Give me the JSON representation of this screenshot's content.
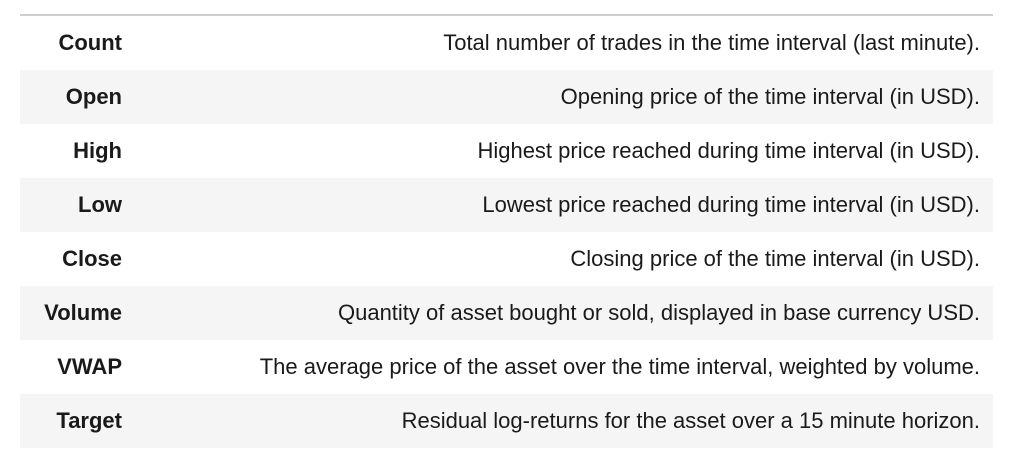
{
  "table": {
    "rows": [
      {
        "field": "Count",
        "description": "Total number of trades in the time interval (last minute)."
      },
      {
        "field": "Open",
        "description": "Opening price of the time interval (in USD)."
      },
      {
        "field": "High",
        "description": "Highest price reached during time interval (in USD)."
      },
      {
        "field": "Low",
        "description": "Lowest price reached during time interval (in USD)."
      },
      {
        "field": "Close",
        "description": "Closing price of the time interval (in USD)."
      },
      {
        "field": "Volume",
        "description": "Quantity of asset bought or sold, displayed in base currency USD."
      },
      {
        "field": "VWAP",
        "description": "The average price of the asset over the time interval, weighted by volume."
      },
      {
        "field": "Target",
        "description": "Residual log-returns for the asset over a 15 minute horizon."
      }
    ]
  }
}
